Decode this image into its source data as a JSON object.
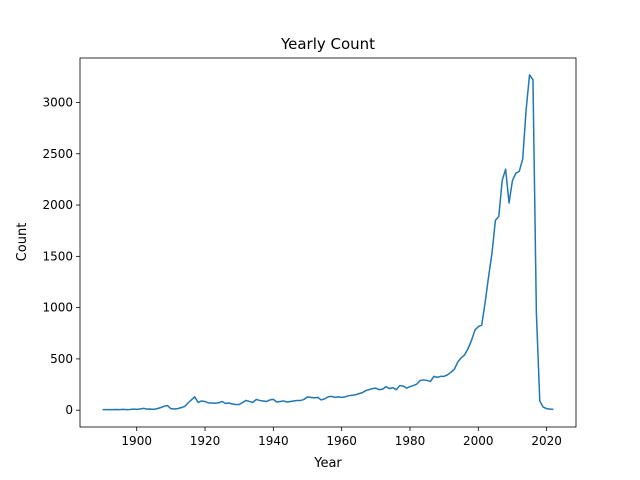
{
  "chart_data": {
    "type": "line",
    "title": "Yearly Count",
    "x_label": "Year",
    "y_label": "Count",
    "x": [
      1890,
      1891,
      1892,
      1893,
      1894,
      1895,
      1896,
      1897,
      1898,
      1899,
      1900,
      1901,
      1902,
      1903,
      1904,
      1905,
      1906,
      1907,
      1908,
      1909,
      1910,
      1911,
      1912,
      1913,
      1914,
      1915,
      1916,
      1917,
      1918,
      1919,
      1920,
      1921,
      1922,
      1923,
      1924,
      1925,
      1926,
      1927,
      1928,
      1929,
      1930,
      1931,
      1932,
      1933,
      1934,
      1935,
      1936,
      1937,
      1938,
      1939,
      1940,
      1941,
      1942,
      1943,
      1944,
      1945,
      1946,
      1947,
      1948,
      1949,
      1950,
      1951,
      1952,
      1953,
      1954,
      1955,
      1956,
      1957,
      1958,
      1959,
      1960,
      1961,
      1962,
      1963,
      1964,
      1965,
      1966,
      1967,
      1968,
      1969,
      1970,
      1971,
      1972,
      1973,
      1974,
      1975,
      1976,
      1977,
      1978,
      1979,
      1980,
      1981,
      1982,
      1983,
      1984,
      1985,
      1986,
      1987,
      1988,
      1989,
      1990,
      1991,
      1992,
      1993,
      1994,
      1995,
      1996,
      1997,
      1998,
      1999,
      2000,
      2001,
      2002,
      2003,
      2004,
      2005,
      2006,
      2007,
      2008,
      2009,
      2010,
      2011,
      2012,
      2013,
      2014,
      2015,
      2016,
      2017,
      2018,
      2019,
      2020,
      2021,
      2022
    ],
    "series": [
      {
        "color": "#1f77b4",
        "values": [
          5,
          5,
          6,
          5,
          7,
          6,
          8,
          5,
          7,
          10,
          8,
          12,
          18,
          10,
          12,
          8,
          15,
          25,
          38,
          45,
          15,
          12,
          15,
          25,
          35,
          70,
          100,
          130,
          75,
          90,
          85,
          70,
          70,
          68,
          72,
          85,
          65,
          70,
          60,
          55,
          55,
          75,
          95,
          85,
          75,
          105,
          95,
          90,
          85,
          100,
          105,
          80,
          85,
          90,
          80,
          85,
          90,
          95,
          95,
          105,
          130,
          125,
          120,
          125,
          100,
          110,
          130,
          135,
          125,
          130,
          125,
          130,
          140,
          145,
          150,
          160,
          170,
          190,
          200,
          210,
          215,
          200,
          205,
          230,
          210,
          220,
          200,
          240,
          235,
          215,
          230,
          240,
          255,
          290,
          295,
          290,
          280,
          330,
          320,
          330,
          330,
          345,
          370,
          400,
          470,
          510,
          540,
          600,
          680,
          780,
          815,
          830,
          1050,
          1300,
          1530,
          1850,
          1890,
          2240,
          2350,
          2020,
          2240,
          2310,
          2330,
          2450,
          2930,
          3270,
          3220,
          950,
          90,
          30,
          15,
          10,
          8
        ]
      }
    ],
    "xlim": [
      1883.4,
      2028.6
    ],
    "ylim": [
      -164,
      3434
    ],
    "xticks": [
      1900,
      1920,
      1940,
      1960,
      1980,
      2000,
      2020
    ],
    "yticks": [
      0,
      500,
      1000,
      1500,
      2000,
      2500,
      3000
    ]
  }
}
